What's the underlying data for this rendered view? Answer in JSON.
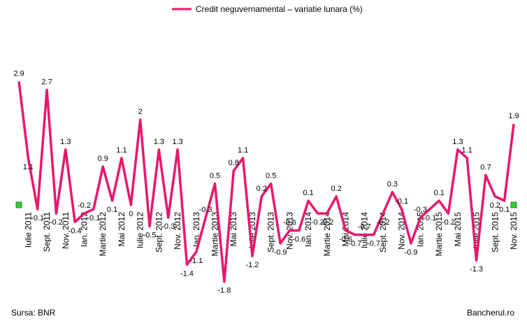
{
  "chart_data": {
    "type": "line",
    "categories": [
      null,
      "Iulie 2011",
      null,
      "Sept. 2011",
      null,
      "Nov. 2011",
      null,
      "Ian. 2012",
      null,
      "Martie 2012",
      null,
      "Mai 2012",
      null,
      "Iulie 2012",
      null,
      "Sept. 2012",
      null,
      "Nov. 2012",
      null,
      "Ian. 2013",
      null,
      "Martie 2013",
      null,
      "Mai 2013",
      null,
      "Iulie 2013",
      null,
      "Sept. 2013",
      null,
      "Nov. 2013",
      null,
      "Ian. 2014",
      null,
      "Martie 2014",
      null,
      "Mai 2014",
      null,
      "Iulie 2014",
      null,
      "Sept. 2014",
      null,
      "Nov. 2014",
      null,
      "Ian. 2015",
      null,
      "Martie 2015",
      null,
      "Mai 2015",
      null,
      "Iulie 2015",
      null,
      "Sept. 2015",
      null,
      "Nov. 2015"
    ],
    "series": [
      {
        "name": "Credit neguvernamental – variatie lunara (%)",
        "color": "#e8186d",
        "values": [
          2.9,
          1.1,
          -0.1,
          2.7,
          -0.2,
          1.3,
          -0.4,
          -0.2,
          -0.1,
          0.9,
          0.1,
          1.1,
          0,
          2,
          -0.5,
          1.3,
          -0.3,
          1.3,
          -1.4,
          -1.1,
          -0.3,
          0.5,
          -1.8,
          0.8,
          1.1,
          -1.2,
          0.2,
          0.5,
          -0.9,
          -0.6,
          -0.6,
          0.1,
          -0.2,
          -0.2,
          0.2,
          -0.6,
          -0.7,
          -0.7,
          -0.7,
          -0.2,
          0.3,
          -0.1,
          -0.9,
          -0.3,
          -0.1,
          0.1,
          -0.2,
          1.3,
          1.1,
          -1.3,
          0.7,
          0.2,
          0.1,
          1.9
        ]
      }
    ],
    "ylim": [
      -2.2,
      3.2
    ],
    "legend": "top",
    "source": "Sursa: BNR",
    "credit": "Bancherul.ro"
  }
}
